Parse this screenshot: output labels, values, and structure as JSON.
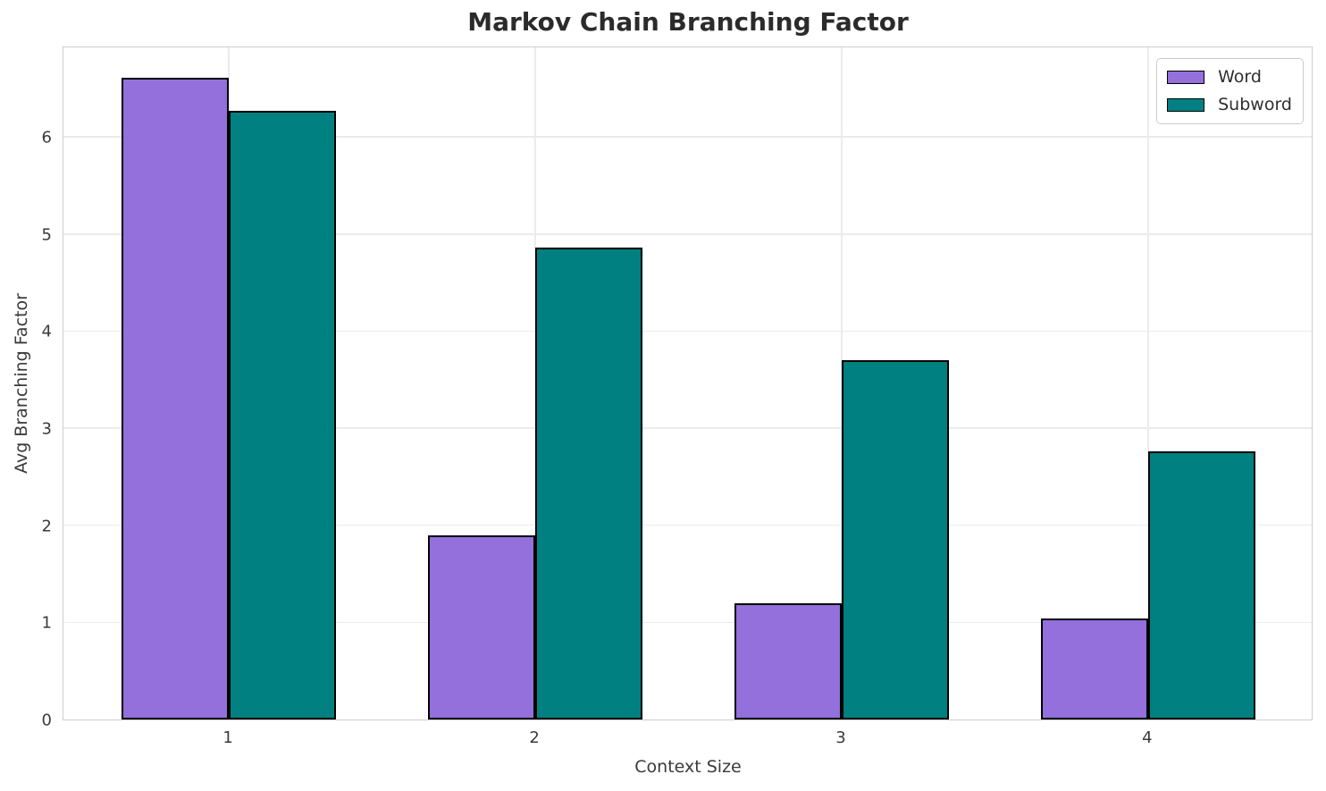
{
  "title": "Markov Chain Branching Factor",
  "chart_data": {
    "type": "bar",
    "title": "Markov Chain Branching Factor",
    "xlabel": "Context Size",
    "ylabel": "Avg Branching Factor",
    "categories": [
      "1",
      "2",
      "3",
      "4"
    ],
    "series": [
      {
        "name": "Word",
        "color": "#9370DB",
        "values": [
          6.61,
          1.9,
          1.2,
          1.04
        ]
      },
      {
        "name": "Subword",
        "color": "#008080",
        "values": [
          6.27,
          4.86,
          3.7,
          2.76
        ]
      }
    ],
    "yticks": [
      0,
      1,
      2,
      3,
      4,
      5,
      6
    ],
    "ylim": [
      0,
      6.94
    ],
    "bar_width": 0.35,
    "grid": true,
    "legend_position": "upper-right",
    "edge_color": "#000000",
    "grid_color": "#ebebeb",
    "spine_color": "#cdcdcd",
    "tick_color": "#3a3a3a",
    "title_color": "#2b2b2b"
  }
}
